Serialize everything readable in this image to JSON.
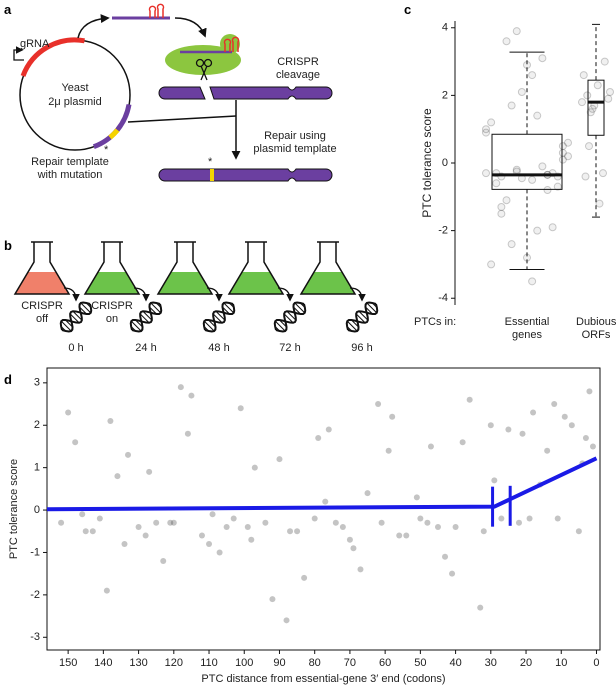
{
  "panel_labels": [
    "a",
    "b",
    "c",
    "d"
  ],
  "diagram_a": {
    "grna": "gRNA",
    "plasmid": [
      "Yeast",
      "2μ plasmid"
    ],
    "repair_template": "Repair template with mutation",
    "cleavage": "CRISPR cleavage",
    "repair": "Repair using plasmid template",
    "stars": [
      "*",
      "*"
    ]
  },
  "diagram_b": {
    "conditions": [
      "CRISPR off",
      "CRISPR on"
    ],
    "timepoints": [
      "0 h",
      "24 h",
      "48 h",
      "72 h",
      "96 h"
    ]
  },
  "chart_data": [
    {
      "type": "box",
      "ylabel": "PTC tolerance score",
      "axis_prefix": "PTCs in:",
      "categories": [
        "Essential genes",
        "Dubious ORFs"
      ],
      "ylim": [
        -4.2,
        4.2
      ],
      "yticks": [
        -4,
        -2,
        0,
        2,
        4
      ],
      "boxes": [
        {
          "whislo": -3.15,
          "q1": -0.78,
          "med": -0.35,
          "q3": 0.85,
          "whishi": 3.28
        },
        {
          "whislo": -1.6,
          "q1": 0.82,
          "med": 1.8,
          "q3": 2.45,
          "whishi": 4.1
        }
      ],
      "points": [
        [
          -0.3,
          -0.4,
          -0.2,
          -0.5,
          -0.35,
          0.5,
          1.2,
          -1.1,
          2.1,
          -2.0,
          -0.3,
          0.2,
          -0.6,
          1.7,
          -2.8,
          3.1,
          -0.4,
          0.9,
          -1.5,
          -0.25,
          2.6,
          -0.8,
          0.1,
          -3.0,
          3.6,
          -0.45,
          1.4,
          -1.9,
          0.6,
          -0.3,
          -2.4,
          2.9,
          -0.1,
          -0.7,
          1.0,
          -1.3,
          3.9,
          -3.5,
          -0.35,
          0.3
        ],
        [
          1.8,
          2.0,
          1.6,
          2.3,
          -0.3,
          1.9,
          2.6,
          0.5,
          1.7,
          -1.2,
          3.0,
          2.1,
          -0.4,
          1.5
        ]
      ]
    },
    {
      "type": "scatter",
      "xlabel": "PTC distance from essential-gene 3′ end (codons)",
      "ylabel": "PTC tolerance score",
      "xlim": [
        156,
        -1
      ],
      "ylim": [
        -3.3,
        3.35
      ],
      "xticks": [
        150,
        140,
        130,
        120,
        110,
        100,
        90,
        80,
        70,
        60,
        50,
        40,
        30,
        20,
        10,
        0
      ],
      "yticks": [
        -3,
        -2,
        -1,
        0,
        1,
        2,
        3
      ],
      "color": "#555555",
      "x": [
        152,
        148,
        145,
        141,
        138,
        134,
        130,
        127,
        123,
        120,
        116,
        112,
        109,
        105,
        101,
        98,
        94,
        90,
        87,
        83,
        80,
        76,
        72,
        69,
        65,
        61,
        58,
        54,
        50,
        47,
        43,
        40,
        36,
        32,
        29,
        25,
        22,
        18,
        14,
        11,
        7,
        4,
        2,
        150,
        146,
        139,
        133,
        128,
        121,
        115,
        110,
        103,
        97,
        92,
        85,
        79,
        74,
        67,
        62,
        56,
        51,
        45,
        38,
        33,
        27,
        21,
        16,
        9,
        5,
        1,
        143,
        136,
        125,
        118,
        107,
        99,
        88,
        77,
        70,
        59,
        48,
        41,
        30,
        19,
        12,
        3
      ],
      "y": [
        -0.3,
        1.6,
        -0.5,
        -0.2,
        2.1,
        -0.8,
        -0.4,
        0.9,
        -1.2,
        -0.3,
        1.8,
        -0.6,
        -0.1,
        -0.4,
        2.4,
        -0.7,
        -0.3,
        1.2,
        -0.5,
        -1.6,
        -0.2,
        1.9,
        -0.4,
        -0.9,
        0.4,
        -0.3,
        2.2,
        -0.6,
        -0.2,
        1.5,
        -1.1,
        -0.4,
        2.6,
        -0.5,
        0.7,
        1.9,
        -0.3,
        2.3,
        1.4,
        -0.2,
        2.0,
        1.1,
        2.8,
        2.3,
        -0.1,
        -1.9,
        1.3,
        -0.6,
        -0.3,
        2.7,
        -0.8,
        -0.2,
        1.0,
        -2.1,
        -0.5,
        1.7,
        -0.3,
        -1.4,
        2.5,
        -0.6,
        0.3,
        -0.4,
        1.6,
        -2.3,
        -0.2,
        1.8,
        0.6,
        2.2,
        -0.5,
        1.5,
        -0.5,
        0.8,
        -0.3,
        2.9,
        -1.0,
        -0.4,
        -2.6,
        0.2,
        -0.7,
        1.4,
        -0.3,
        -1.5,
        2.0,
        -0.2,
        2.5,
        1.7
      ],
      "fit": {
        "color": "#1a1ae6",
        "x": [
          156,
          29,
          0
        ],
        "y": [
          0.02,
          0.08,
          1.22
        ]
      },
      "breakpoints": {
        "x": [
          29.5,
          24.5
        ],
        "y": [
          0.08,
          0.1
        ]
      }
    }
  ]
}
